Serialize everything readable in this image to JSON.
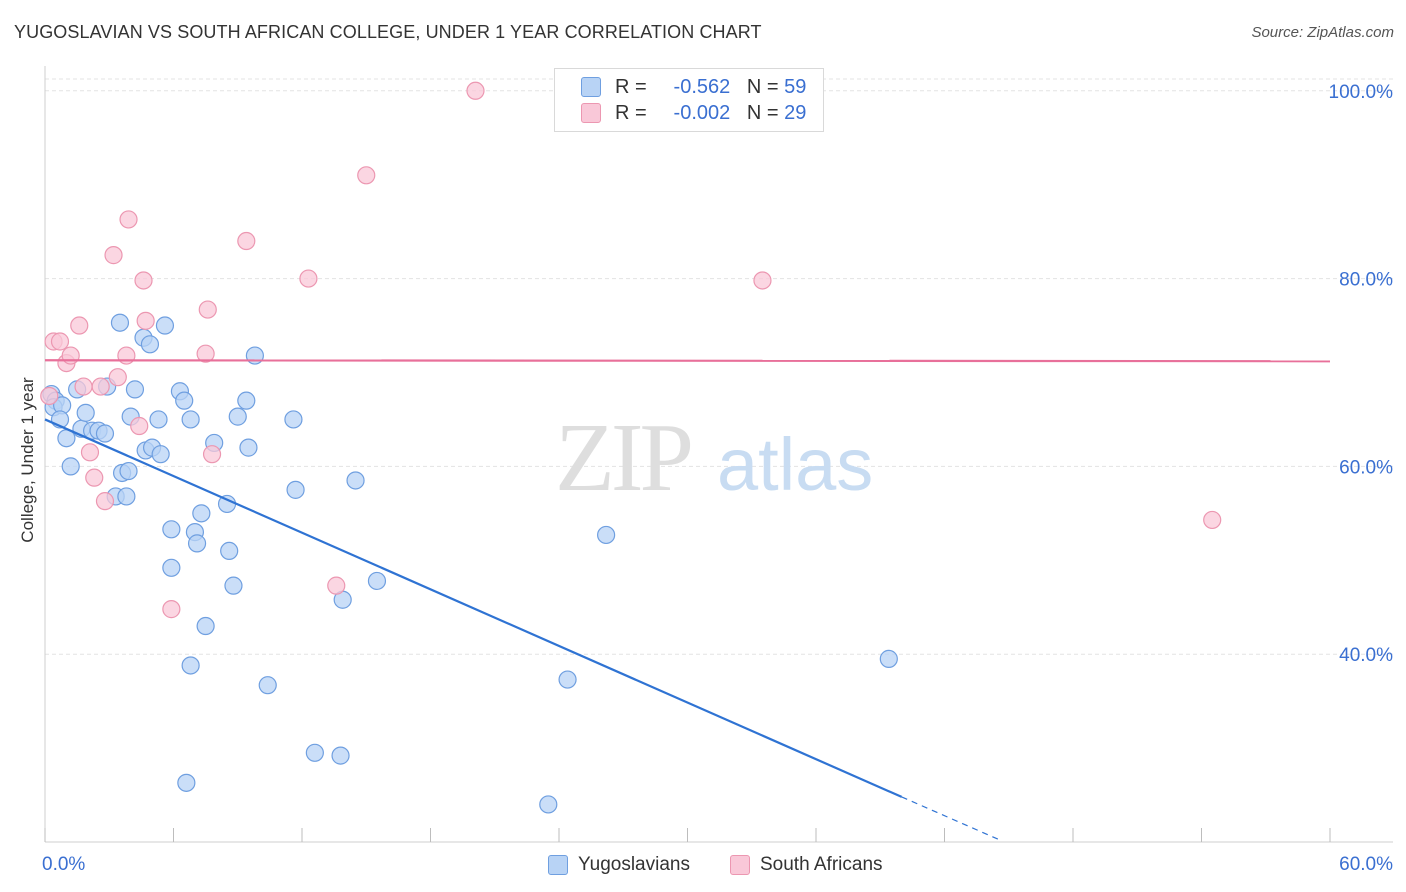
{
  "title": "YUGOSLAVIAN VS SOUTH AFRICAN COLLEGE, UNDER 1 YEAR CORRELATION CHART",
  "source": "Source: ZipAtlas.com",
  "watermark": {
    "zip": "ZIP",
    "atlas": "atlas"
  },
  "legend": {
    "r_label": "R =",
    "n_label": "N =",
    "rows": [
      {
        "r": "-0.562",
        "n": "59"
      },
      {
        "r": "-0.002",
        "n": "29"
      }
    ]
  },
  "colors": {
    "blue_fill": "#b8d3f5",
    "blue_stroke": "#6f9fe0",
    "blue_line": "#2f73d3",
    "pink_fill": "#f9c8d8",
    "pink_stroke": "#ec97b1",
    "pink_line": "#e8709a",
    "axis_text": "#3a6fd1",
    "grid": "#e3e3e3"
  },
  "chart_data": {
    "type": "scatter",
    "title": "YUGOSLAVIAN VS SOUTH AFRICAN COLLEGE, UNDER 1 YEAR CORRELATION CHART",
    "xlabel": "",
    "ylabel": "College, Under 1 year",
    "xlim": [
      0,
      60
    ],
    "ylim": [
      20,
      102
    ],
    "x_tick_labels": [
      "0.0%",
      "60.0%"
    ],
    "y_ticks": [
      40,
      60,
      80,
      100
    ],
    "y_tick_labels": [
      "40.0%",
      "60.0%",
      "80.0%",
      "100.0%"
    ],
    "legend_position": "top-center",
    "series": [
      {
        "name": "Yugoslavians",
        "r": -0.562,
        "n": 59,
        "trend": {
          "x0": 0,
          "y0": 65.0,
          "x1": 40,
          "y1": 24.8,
          "dashed_to_x": 44.5,
          "dashed_to_y": 20.3
        },
        "points": [
          [
            0.3,
            67.7
          ],
          [
            0.5,
            67.0
          ],
          [
            0.4,
            66.3
          ],
          [
            0.8,
            66.5
          ],
          [
            0.7,
            65.0
          ],
          [
            1.0,
            63.0
          ],
          [
            1.2,
            60.0
          ],
          [
            1.5,
            68.2
          ],
          [
            1.7,
            64.0
          ],
          [
            1.9,
            65.7
          ],
          [
            2.2,
            63.8
          ],
          [
            2.5,
            63.8
          ],
          [
            2.8,
            63.5
          ],
          [
            2.9,
            68.5
          ],
          [
            3.3,
            56.8
          ],
          [
            3.5,
            75.3
          ],
          [
            3.6,
            59.3
          ],
          [
            3.8,
            56.8
          ],
          [
            3.9,
            59.5
          ],
          [
            4.0,
            65.3
          ],
          [
            4.2,
            68.2
          ],
          [
            4.6,
            73.7
          ],
          [
            4.7,
            61.7
          ],
          [
            4.9,
            73.0
          ],
          [
            5.0,
            62.0
          ],
          [
            5.3,
            65.0
          ],
          [
            5.4,
            61.3
          ],
          [
            5.6,
            75.0
          ],
          [
            5.9,
            53.3
          ],
          [
            5.9,
            49.2
          ],
          [
            6.3,
            68.0
          ],
          [
            6.5,
            67.0
          ],
          [
            6.8,
            38.8
          ],
          [
            6.6,
            26.3
          ],
          [
            7.0,
            53.0
          ],
          [
            7.1,
            51.8
          ],
          [
            7.3,
            55.0
          ],
          [
            7.5,
            43.0
          ],
          [
            7.9,
            62.5
          ],
          [
            8.5,
            56.0
          ],
          [
            8.6,
            51.0
          ],
          [
            8.8,
            47.3
          ],
          [
            9.0,
            65.3
          ],
          [
            9.4,
            67.0
          ],
          [
            9.5,
            62.0
          ],
          [
            9.8,
            71.8
          ],
          [
            10.4,
            36.7
          ],
          [
            11.6,
            65.0
          ],
          [
            11.7,
            57.5
          ],
          [
            12.6,
            29.5
          ],
          [
            13.8,
            29.2
          ],
          [
            13.9,
            45.8
          ],
          [
            14.5,
            58.5
          ],
          [
            15.5,
            47.8
          ],
          [
            23.5,
            24.0
          ],
          [
            24.4,
            37.3
          ],
          [
            26.2,
            52.7
          ],
          [
            39.4,
            39.5
          ],
          [
            6.8,
            65.0
          ]
        ]
      },
      {
        "name": "South Africans",
        "r": -0.002,
        "n": 29,
        "trend": {
          "x0": 0,
          "y0": 71.3,
          "x1": 60,
          "y1": 71.2
        },
        "points": [
          [
            0.2,
            67.5
          ],
          [
            0.4,
            73.3
          ],
          [
            0.7,
            73.3
          ],
          [
            1.0,
            71.0
          ],
          [
            1.2,
            71.8
          ],
          [
            1.6,
            75.0
          ],
          [
            1.8,
            68.5
          ],
          [
            2.1,
            61.5
          ],
          [
            2.3,
            58.8
          ],
          [
            2.6,
            68.5
          ],
          [
            2.8,
            56.3
          ],
          [
            3.2,
            82.5
          ],
          [
            3.4,
            69.5
          ],
          [
            3.8,
            71.8
          ],
          [
            3.9,
            86.3
          ],
          [
            4.4,
            64.3
          ],
          [
            4.6,
            79.8
          ],
          [
            4.7,
            75.5
          ],
          [
            5.9,
            44.8
          ],
          [
            7.5,
            72.0
          ],
          [
            7.6,
            76.7
          ],
          [
            7.8,
            61.3
          ],
          [
            9.4,
            84.0
          ],
          [
            12.3,
            80.0
          ],
          [
            13.6,
            47.3
          ],
          [
            15.0,
            91.0
          ],
          [
            20.1,
            100.0
          ],
          [
            33.5,
            79.8
          ],
          [
            54.5,
            54.3
          ]
        ]
      }
    ]
  },
  "bottom_legend": [
    "Yugoslavians",
    "South Africans"
  ]
}
